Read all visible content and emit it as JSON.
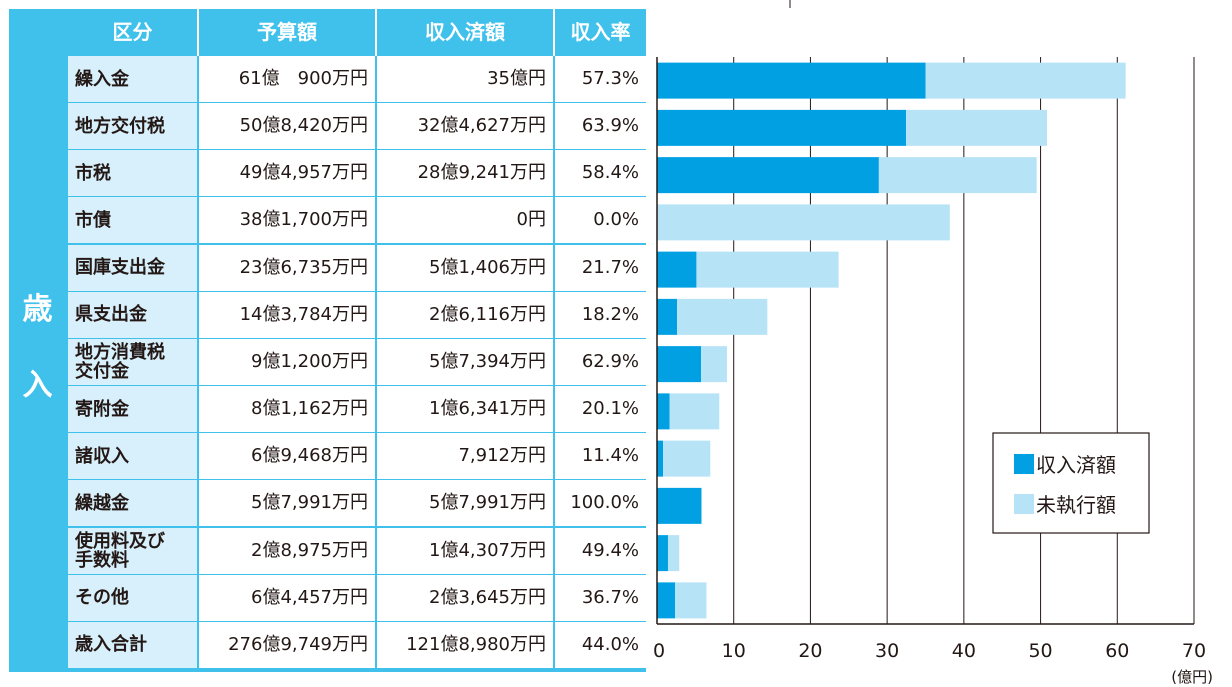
{
  "table": {
    "side_label_1": "歳",
    "side_label_2": "入",
    "headers": [
      "区分",
      "予算額",
      "収入済額",
      "収入率"
    ],
    "rows": [
      {
        "category": "繰入金",
        "budget": "61億　900万円",
        "income": "35億円",
        "rate": "57.3%"
      },
      {
        "category": "地方交付税",
        "budget": "50億8,420万円",
        "income": "32億4,627万円",
        "rate": "63.9%"
      },
      {
        "category": "市税",
        "budget": "49億4,957万円",
        "income": "28億9,241万円",
        "rate": "58.4%"
      },
      {
        "category": "市債",
        "budget": "38億1,700万円",
        "income": "0円",
        "rate": "0.0%"
      },
      {
        "category": "国庫支出金",
        "budget": "23億6,735万円",
        "income": "5億1,406万円",
        "rate": "21.7%"
      },
      {
        "category": "県支出金",
        "budget": "14億3,784万円",
        "income": "2億6,116万円",
        "rate": "18.2%"
      },
      {
        "category": "地方消費税\n交付金",
        "budget": "9億1,200万円",
        "income": "5億7,394万円",
        "rate": "62.9%"
      },
      {
        "category": "寄附金",
        "budget": "8億1,162万円",
        "income": "1億6,341万円",
        "rate": "20.1%"
      },
      {
        "category": "諸収入",
        "budget": "6億9,468万円",
        "income": "7,912万円",
        "rate": "11.4%"
      },
      {
        "category": "繰越金",
        "budget": "5億7,991万円",
        "income": "5億7,991万円",
        "rate": "100.0%"
      },
      {
        "category": "使用料及び\n手数料",
        "budget": "2億8,975万円",
        "income": "1億4,307万円",
        "rate": "49.4%"
      },
      {
        "category": "その他",
        "budget": "6億4,457万円",
        "income": "2億3,645万円",
        "rate": "36.7%"
      }
    ],
    "total": {
      "category": "歳入合計",
      "budget": "276億9,749万円",
      "income": "121億8,980万円",
      "rate": "44.0%"
    }
  },
  "chart_data": {
    "type": "bar",
    "orientation": "horizontal",
    "stacked": true,
    "categories": [
      "繰入金",
      "地方交付税",
      "市税",
      "市債",
      "国庫支出金",
      "県支出金",
      "地方消費税交付金",
      "寄附金",
      "諸収入",
      "繰越金",
      "使用料及び手数料",
      "その他"
    ],
    "series": [
      {
        "name": "収入済額",
        "color": "#00a0e2",
        "values": [
          35.0,
          32.4627,
          28.9241,
          0,
          5.1406,
          2.6116,
          5.7394,
          1.6341,
          0.7912,
          5.7991,
          1.4307,
          2.3645
        ]
      },
      {
        "name": "未執行額",
        "color": "#b7e3f7",
        "values": [
          26.09,
          18.3793,
          20.5716,
          38.17,
          18.5329,
          11.7668,
          3.3806,
          6.4821,
          6.1556,
          0,
          1.4668,
          4.0812
        ]
      }
    ],
    "xlim": [
      0,
      70
    ],
    "xticks": [
      "0",
      "10",
      "20",
      "30",
      "40",
      "50",
      "60",
      "70"
    ],
    "xunit": "(億円)",
    "grid": true,
    "legend": [
      {
        "label": "収入済額",
        "color": "#00a0e2"
      },
      {
        "label": "未執行額",
        "color": "#b7e3f7"
      }
    ],
    "legend_position": "bottom-right"
  }
}
